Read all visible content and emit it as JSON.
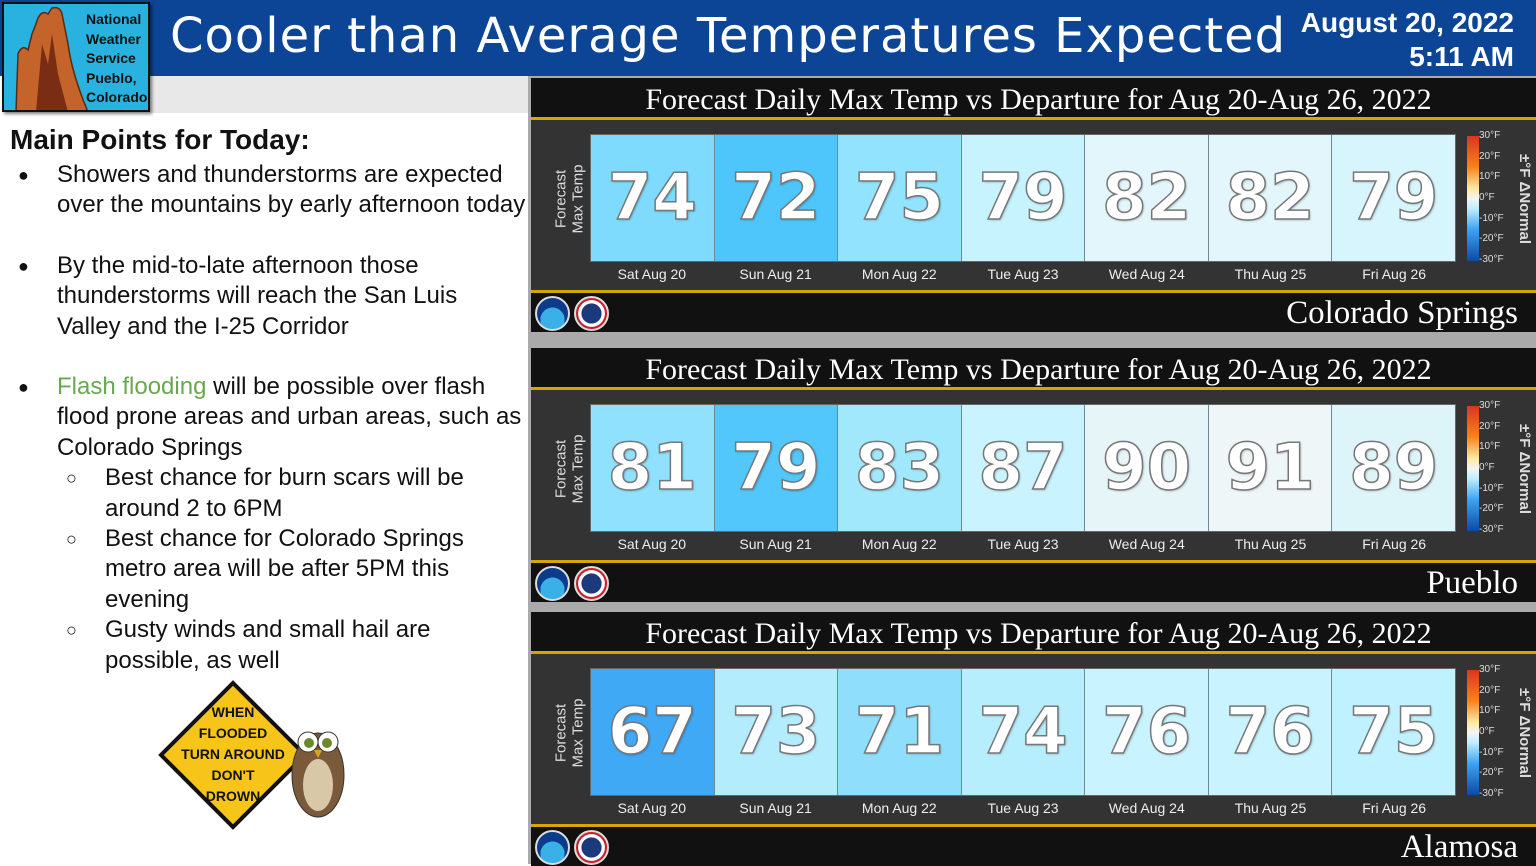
{
  "header": {
    "logo_text": [
      "National",
      "Weather",
      "Service",
      "Pueblo,",
      "Colorado"
    ],
    "title": "Cooler than Average Temperatures Expected",
    "date": "August 20, 2022",
    "time": "5:11 AM"
  },
  "main_points": {
    "heading": "Main Points for Today:",
    "bullet1": "Showers and thunderstorms are expected over the mountains by early afternoon today",
    "bullet2": "By the mid-to-late afternoon those thunderstorms will reach the San Luis Valley and the I-25 Corridor",
    "bullet3_highlight": "Flash flooding",
    "bullet3_rest": " will be possible over flash flood prone areas and urban areas, such as Colorado Springs",
    "sub_bullets": [
      "Best chance for burn scars will be around 2 to 6PM",
      "Best chance for Colorado Springs metro area will be after 5PM this evening",
      "Gusty winds and small hail are possible, as well"
    ]
  },
  "sign": {
    "lines": [
      "WHEN",
      "FLOODED",
      "TURN AROUND",
      "DON'T",
      "DROWN"
    ]
  },
  "panel_common": {
    "title": "Forecast Daily Max Temp vs Departure for Aug 20-Aug 26, 2022",
    "ylabel_1": "Forecast",
    "ylabel_2": "Max Temp",
    "days": [
      "Sat Aug 20",
      "Sun Aug 21",
      "Mon Aug 22",
      "Tue Aug 23",
      "Wed Aug 24",
      "Thu Aug 25",
      "Fri Aug 26"
    ],
    "colorbar_ticks": [
      "30°F",
      "20°F",
      "10°F",
      "0°F",
      "-10°F",
      "-20°F",
      "-30°F"
    ],
    "colorbar_label": "±°F ΔNormal"
  },
  "panels": [
    {
      "city": "Colorado Springs",
      "temps": [
        "74",
        "72",
        "75",
        "79",
        "82",
        "82",
        "79"
      ],
      "colors": [
        "#7fdbfd",
        "#4fc6fb",
        "#92e3fd",
        "#c6f3fe",
        "#e3f6fb",
        "#e3f6fb",
        "#d6f5fd"
      ]
    },
    {
      "city": "Pueblo",
      "temps": [
        "81",
        "79",
        "83",
        "87",
        "90",
        "91",
        "89"
      ],
      "colors": [
        "#8fe1fd",
        "#52c7fb",
        "#a2e8fd",
        "#c9f3fe",
        "#e6f5f8",
        "#eef6f8",
        "#ddf4f9"
      ]
    },
    {
      "city": "Alamosa",
      "temps": [
        "67",
        "73",
        "71",
        "74",
        "76",
        "76",
        "75"
      ],
      "colors": [
        "#3fa9f5",
        "#b3ecfd",
        "#8fdffc",
        "#b7eefd",
        "#c9f3fe",
        "#c9f3fe",
        "#c0f1fe"
      ]
    }
  ]
}
